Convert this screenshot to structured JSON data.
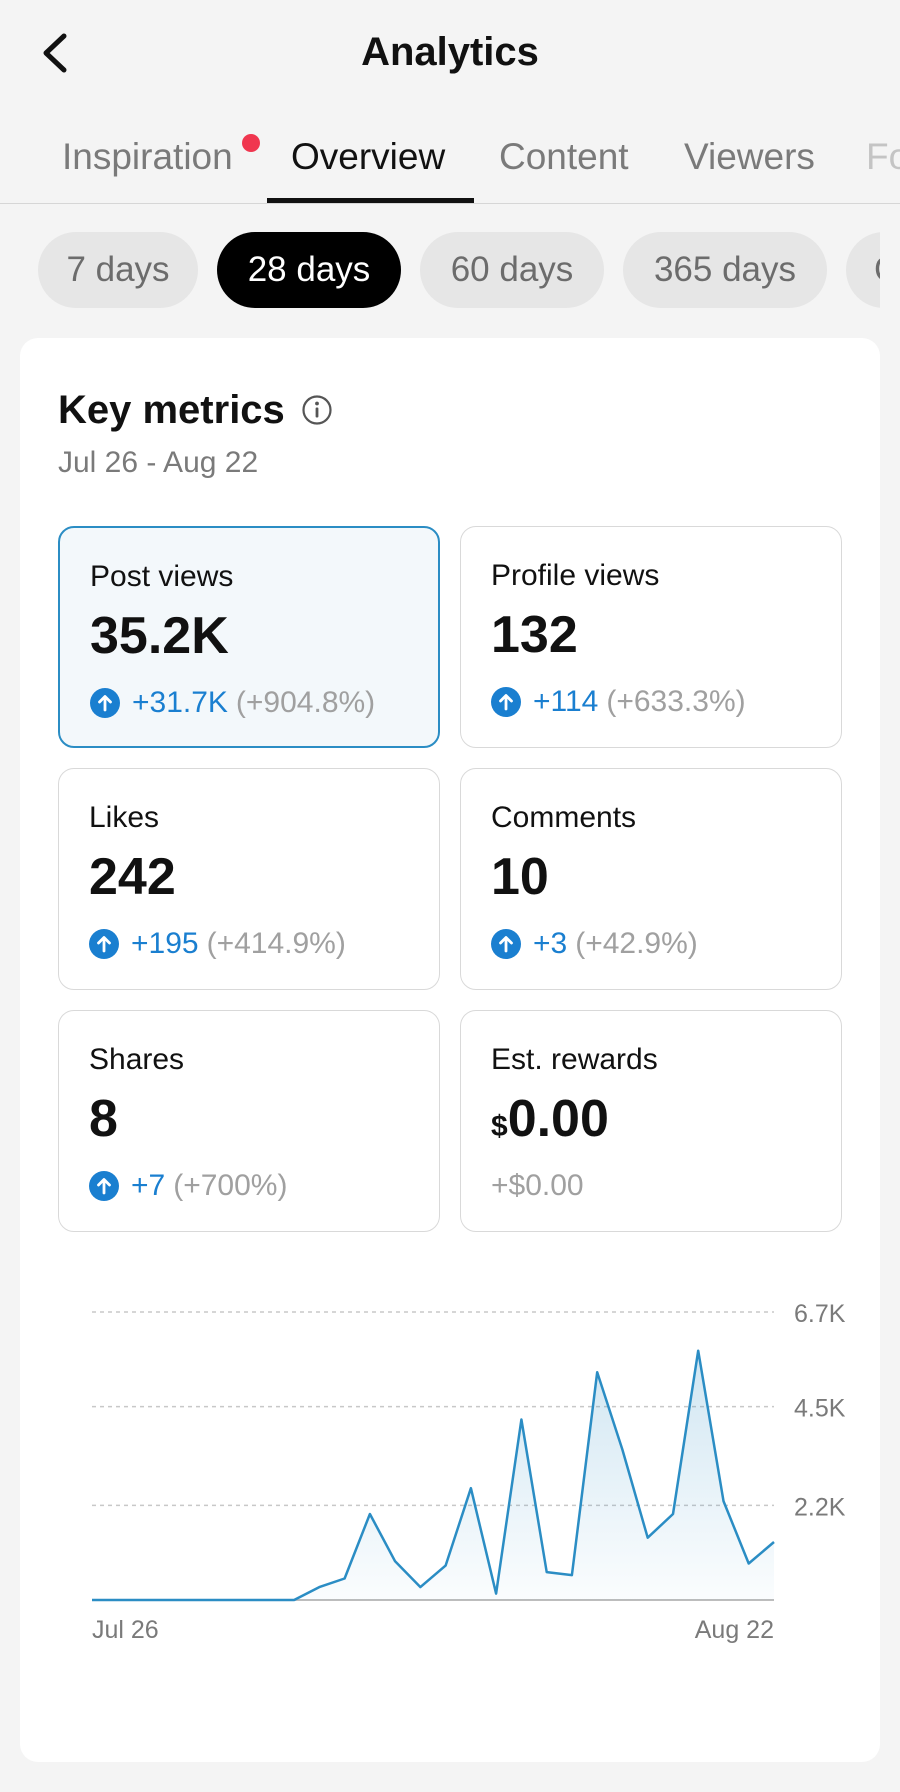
{
  "header": {
    "title": "Analytics"
  },
  "tabs": [
    {
      "label": "Inspiration",
      "active": false,
      "has_notification_dot": true
    },
    {
      "label": "Overview",
      "active": true
    },
    {
      "label": "Content",
      "active": false
    },
    {
      "label": "Viewers",
      "active": false
    },
    {
      "label": "Fo",
      "active": false
    }
  ],
  "ranges": [
    {
      "label": "7 days",
      "active": false
    },
    {
      "label": "28 days",
      "active": true
    },
    {
      "label": "60 days",
      "active": false
    },
    {
      "label": "365 days",
      "active": false
    },
    {
      "label": "C",
      "active": false
    }
  ],
  "key_metrics": {
    "title": "Key metrics",
    "range": "Jul 26 - Aug 22",
    "metrics": [
      {
        "label": "Post views",
        "value": "35.2K",
        "delta": "+31.7K",
        "pct": "(+904.8%)",
        "selected": true
      },
      {
        "label": "Profile views",
        "value": "132",
        "delta": "+114",
        "pct": "(+633.3%)"
      },
      {
        "label": "Likes",
        "value": "242",
        "delta": "+195",
        "pct": "(+414.9%)"
      },
      {
        "label": "Comments",
        "value": "10",
        "delta": "+3",
        "pct": "(+42.9%)"
      },
      {
        "label": "Shares",
        "value": "8",
        "delta": "+7",
        "pct": "(+700%)"
      },
      {
        "label": "Est. rewards",
        "currency": "$",
        "value": "0.00",
        "delta": "+$0.00"
      }
    ]
  },
  "colors": {
    "accent_blue": "#1a7fd0",
    "selected_border": "#2b8dc4",
    "notification": "#f0364f",
    "line": "#2b8dc4"
  },
  "chart_data": {
    "type": "area",
    "x_start_label": "Jul 26",
    "x_end_label": "Aug 22",
    "y_ticks": [
      "2.2K",
      "4.5K",
      "6.7K"
    ],
    "y_tick_values": [
      2200,
      4500,
      6700
    ],
    "ylim": [
      0,
      6700
    ],
    "grid": true,
    "series": [
      {
        "values": [
          0,
          0,
          0,
          0,
          0,
          0,
          0,
          0,
          0,
          300,
          500,
          2000,
          900,
          300,
          800,
          2600,
          150,
          4200,
          650,
          580,
          5300,
          3500,
          1450,
          2000,
          5800,
          2300,
          850,
          1350
        ]
      }
    ]
  }
}
